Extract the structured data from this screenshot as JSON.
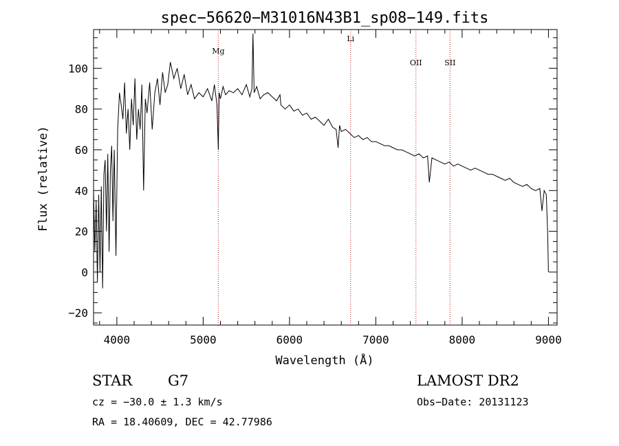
{
  "chart_data": {
    "type": "line",
    "title": "spec−56620−M31016N43B1_sp08−149.fits",
    "xlabel": "Wavelength (Å)",
    "ylabel": "Flux (relative)",
    "xlim": [
      3730,
      9100
    ],
    "ylim": [
      -26,
      119
    ],
    "x_ticks": [
      4000,
      5000,
      6000,
      7000,
      8000,
      9000
    ],
    "x_tick_labels": [
      "4000",
      "5000",
      "6000",
      "7000",
      "8000",
      "9000"
    ],
    "y_ticks": [
      -20,
      0,
      20,
      40,
      60,
      80,
      100
    ],
    "y_tick_labels": [
      "−20",
      "0",
      "20",
      "40",
      "60",
      "80",
      "100"
    ],
    "grid": false,
    "series": [
      {
        "color": "#000000",
        "x": [
          3730,
          3745,
          3760,
          3775,
          3790,
          3805,
          3820,
          3835,
          3850,
          3865,
          3880,
          3895,
          3910,
          3925,
          3940,
          3955,
          3970,
          3990,
          4010,
          4030,
          4050,
          4070,
          4090,
          4110,
          4130,
          4150,
          4170,
          4190,
          4210,
          4230,
          4250,
          4270,
          4290,
          4310,
          4330,
          4350,
          4380,
          4410,
          4440,
          4470,
          4500,
          4530,
          4560,
          4590,
          4620,
          4660,
          4700,
          4740,
          4780,
          4820,
          4860,
          4900,
          4950,
          5000,
          5050,
          5100,
          5130,
          5160,
          5175,
          5185,
          5200,
          5230,
          5260,
          5300,
          5350,
          5400,
          5450,
          5500,
          5540,
          5565,
          5577,
          5590,
          5620,
          5660,
          5700,
          5750,
          5800,
          5850,
          5890,
          5900,
          5950,
          6000,
          6050,
          6100,
          6150,
          6200,
          6250,
          6300,
          6350,
          6400,
          6450,
          6500,
          6540,
          6563,
          6580,
          6600,
          6650,
          6700,
          6750,
          6800,
          6850,
          6900,
          6950,
          7000,
          7050,
          7100,
          7150,
          7200,
          7250,
          7300,
          7350,
          7400,
          7450,
          7500,
          7550,
          7600,
          7620,
          7650,
          7700,
          7750,
          7800,
          7850,
          7900,
          7950,
          8000,
          8050,
          8100,
          8150,
          8200,
          8250,
          8300,
          8350,
          8400,
          8450,
          8500,
          8550,
          8600,
          8650,
          8700,
          8750,
          8800,
          8850,
          8900,
          8925,
          8950,
          8975,
          8990,
          9000
        ],
        "y": [
          40,
          10,
          35,
          -5,
          38,
          0,
          42,
          -8,
          48,
          55,
          20,
          58,
          10,
          50,
          62,
          25,
          60,
          8,
          70,
          88,
          82,
          75,
          93,
          68,
          80,
          60,
          85,
          72,
          95,
          65,
          80,
          70,
          92,
          40,
          85,
          78,
          93,
          70,
          88,
          95,
          82,
          98,
          88,
          92,
          103,
          95,
          100,
          90,
          97,
          87,
          92,
          85,
          88,
          86,
          90,
          84,
          92,
          82,
          60,
          88,
          85,
          91,
          87,
          89,
          88,
          90,
          87,
          92,
          86,
          90,
          117,
          88,
          91,
          85,
          87,
          88,
          86,
          84,
          87,
          82,
          80,
          82,
          79,
          80,
          77,
          78,
          75,
          76,
          74,
          72,
          75,
          71,
          70,
          61,
          72,
          69,
          70,
          68,
          66,
          67,
          65,
          66,
          64,
          64,
          63,
          62,
          62,
          61,
          60,
          60,
          59,
          58,
          57,
          58,
          56,
          57,
          44,
          56,
          55,
          54,
          53,
          54,
          52,
          53,
          52,
          51,
          50,
          51,
          50,
          49,
          48,
          48,
          47,
          46,
          45,
          46,
          44,
          43,
          42,
          43,
          41,
          40,
          41,
          30,
          40,
          38,
          20,
          0
        ]
      }
    ],
    "line_markers": [
      {
        "label": "Mg",
        "x": 5175,
        "color": "#b22222"
      },
      {
        "label": "Li",
        "x": 6708,
        "color": "#b22222"
      },
      {
        "label": "OII",
        "x": 7465,
        "color": "#b22222"
      },
      {
        "label": "SII",
        "x": 7860,
        "color": "#b22222"
      }
    ]
  },
  "info": {
    "object_class": "STAR",
    "subclass": "G7",
    "survey": "LAMOST DR2",
    "cz_text": "cz = −30.0 ± 1.3 km/s",
    "obs_date_text": "Obs−Date: 20131123",
    "radec_text": "RA =  18.40609, DEC =  42.77986"
  }
}
